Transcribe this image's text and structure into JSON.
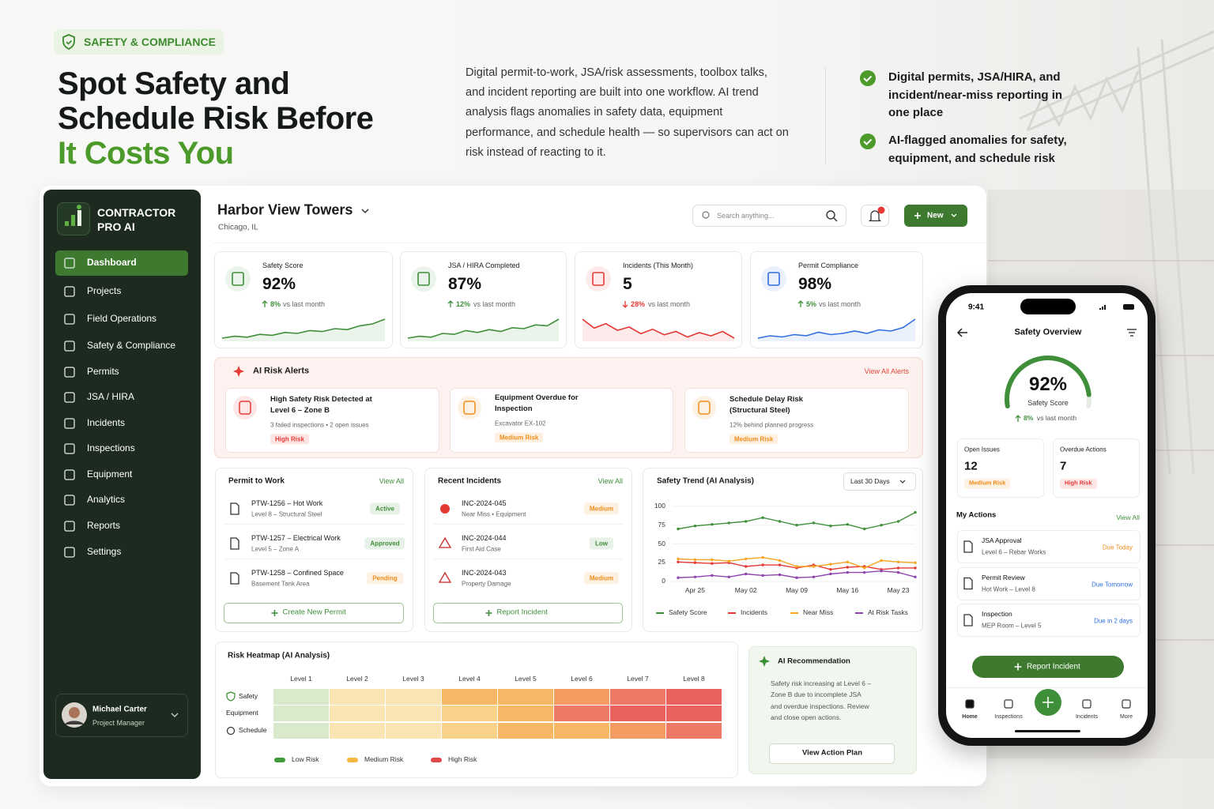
{
  "badge": "SAFETY & COMPLIANCE",
  "hero": {
    "title_lines": [
      "Spot Safety and",
      "Schedule Risk Before"
    ],
    "title_accent": "It Costs You",
    "description": "Digital permit-to-work, JSA/risk assessments, toolbox talks, and incident reporting are built into one workflow. AI trend analysis flags anomalies in safety data, equipment performance, and schedule health — so supervisors can act on risk instead of reacting to it.",
    "bullets": [
      "Digital permits, JSA/HIRA, and incident/near-miss reporting in one place",
      "AI-flagged anomalies for safety, equipment, and schedule risk"
    ]
  },
  "sidebar": {
    "brand": [
      "CONTRACTOR",
      "PRO AI"
    ],
    "nav": [
      "Dashboard",
      "Projects",
      "Field Operations",
      "Safety & Compliance",
      "Permits",
      "JSA / HIRA",
      "Incidents",
      "Inspections",
      "Equipment",
      "Analytics",
      "Reports",
      "Settings"
    ],
    "active_index": 0,
    "user": {
      "name": "Michael Carter",
      "role": "Project Manager"
    }
  },
  "header": {
    "project": "Harbor View Towers",
    "location": "Chicago, IL",
    "search_placeholder": "Search anything...",
    "notification_count": 3,
    "new_button": "New"
  },
  "kpis": [
    {
      "label": "Safety Score",
      "value": "92%",
      "change": "8%",
      "change_note": "vs last month",
      "direction": "up",
      "color": "#3f8f3a",
      "change_color": "#3f8f3a",
      "trend": [
        20,
        22,
        21,
        24,
        23,
        26,
        25,
        28,
        27,
        30,
        29,
        33,
        35,
        40
      ]
    },
    {
      "label": "JSA / HIRA Completed",
      "value": "87%",
      "change": "12%",
      "change_note": "vs last month",
      "direction": "up",
      "color": "#3f8f3a",
      "change_color": "#3f8f3a",
      "trend": [
        18,
        20,
        19,
        23,
        22,
        26,
        24,
        27,
        25,
        29,
        28,
        32,
        31,
        38
      ]
    },
    {
      "label": "Incidents (This Month)",
      "value": "5",
      "change": "28%",
      "change_note": "vs last month",
      "direction": "down",
      "color": "#e53935",
      "change_color": "#e53935",
      "trend": [
        38,
        30,
        34,
        28,
        31,
        25,
        29,
        24,
        27,
        22,
        26,
        23,
        27,
        21
      ]
    },
    {
      "label": "Permit Compliance",
      "value": "98%",
      "change": "5%",
      "change_note": "vs last month",
      "direction": "up",
      "color": "#2f6fdf",
      "change_color": "#3f8f3a",
      "trend": [
        20,
        22,
        21,
        23,
        22,
        25,
        23,
        24,
        26,
        24,
        27,
        26,
        29,
        36
      ]
    }
  ],
  "alerts": {
    "title": "AI Risk Alerts",
    "link": "View All Alerts",
    "items": [
      {
        "title": "High Safety Risk Detected at Level 6 – Zone B",
        "detail": "3 failed inspections • 2 open issues",
        "badge": "High Risk",
        "color": "#e53935"
      },
      {
        "title": "Equipment Overdue for Inspection",
        "detail": "Excavator EX-102",
        "badge": "Medium Risk",
        "color": "#f08c1a"
      },
      {
        "title": "Schedule Delay Risk (Structural Steel)",
        "detail": "12% behind planned progress",
        "badge": "Medium Risk",
        "color": "#f08c1a"
      }
    ]
  },
  "permits": {
    "title": "Permit to Work",
    "link": "View All",
    "button": "Create New Permit",
    "items": [
      {
        "title": "PTW-1256 – Hot Work",
        "sub": "Level 8 – Structural Steel",
        "status": "Active",
        "color": "#3f8f3a"
      },
      {
        "title": "PTW-1257 – Electrical Work",
        "sub": "Level 5 – Zone A",
        "status": "Approved",
        "color": "#3f8f3a"
      },
      {
        "title": "PTW-1258 – Confined Space",
        "sub": "Basement Tank Area",
        "status": "Pending",
        "color": "#f08c1a"
      }
    ]
  },
  "incidents": {
    "title": "Recent Incidents",
    "link": "View All",
    "button": "Report Incident",
    "items": [
      {
        "title": "INC-2024-045",
        "sub": "Near Miss • Equipment",
        "status": "Medium",
        "color": "#f08c1a"
      },
      {
        "title": "INC-2024-044",
        "sub": "First Aid Case",
        "status": "Low",
        "color": "#3f8f3a"
      },
      {
        "title": "INC-2024-043",
        "sub": "Property Damage",
        "status": "Medium",
        "color": "#f08c1a"
      }
    ]
  },
  "chart_data": {
    "type": "line",
    "title": "Safety Trend (AI Analysis)",
    "range_select": "Last 30 Days",
    "categories": [
      null,
      "Apr 25",
      null,
      null,
      "May 02",
      null,
      null,
      "May 09",
      null,
      null,
      "May 16",
      null,
      null,
      "May 23",
      null
    ],
    "series": [
      {
        "name": "Safety Score",
        "color": "#3f8f3a",
        "values": [
          70,
          74,
          76,
          78,
          80,
          85,
          80,
          75,
          78,
          74,
          76,
          70,
          75,
          80,
          92
        ]
      },
      {
        "name": "Incidents",
        "color": "#e53935",
        "values": [
          26,
          25,
          24,
          25,
          20,
          22,
          22,
          18,
          22,
          16,
          19,
          20,
          16,
          18,
          18
        ]
      },
      {
        "name": "Near Miss",
        "color": "#f5a623",
        "values": [
          30,
          29,
          29,
          27,
          30,
          32,
          28,
          20,
          20,
          23,
          26,
          18,
          28,
          26,
          25
        ]
      },
      {
        "name": "At Risk Tasks",
        "color": "#8e44ad",
        "values": [
          5,
          6,
          8,
          6,
          10,
          8,
          9,
          5,
          6,
          10,
          12,
          12,
          14,
          12,
          6
        ]
      }
    ],
    "ylim": [
      0,
      100
    ],
    "yticks": [
      0,
      25,
      50,
      75,
      100
    ],
    "grid": true
  },
  "heatmap": {
    "title": "Risk Heatmap (AI Analysis)",
    "columns": [
      "Level 1",
      "Level 2",
      "Level 3",
      "Level 4",
      "Level 5",
      "Level 6",
      "Level 7",
      "Level 8"
    ],
    "rows": [
      {
        "label": "Safety",
        "cells": [
          0,
          1,
          1,
          3,
          3,
          4,
          5,
          6
        ]
      },
      {
        "label": "Equipment",
        "cells": [
          0,
          1,
          1,
          2,
          3,
          5,
          6,
          6
        ]
      },
      {
        "label": "Schedule",
        "cells": [
          0,
          1,
          1,
          2,
          3,
          3,
          4,
          5
        ]
      }
    ],
    "colors": [
      "#d9e9cc",
      "#fbe4b4",
      "#f9d28a",
      "#f6b864",
      "#f29c62",
      "#ec7a66",
      "#e8625e"
    ],
    "legend": [
      {
        "label": "Low Risk",
        "color": "#3f9a3a"
      },
      {
        "label": "Medium Risk",
        "color": "#f5b942"
      },
      {
        "label": "High Risk",
        "color": "#e04848"
      }
    ]
  },
  "recommendation": {
    "title": "AI Recommendation",
    "text": "Safety risk increasing at Level 6 – Zone B due to incomplete JSA and overdue inspections. Review and close open actions.",
    "button": "View Action Plan"
  },
  "phone": {
    "time": "9:41",
    "title": "Safety Overview",
    "gauge": {
      "value": 92,
      "lim": [
        0,
        100
      ],
      "label": "92%",
      "caption": "Safety Score",
      "change": "8%",
      "change_note": "vs last month"
    },
    "stats": [
      {
        "label": "Open Issues",
        "value": 12,
        "badge": "Medium Risk",
        "color": "#f08c1a"
      },
      {
        "label": "Overdue Actions",
        "value": 7,
        "badge": "High Risk",
        "color": "#e53935"
      }
    ],
    "actions_title": "My Actions",
    "actions_link": "View All",
    "actions": [
      {
        "title": "JSA Approval",
        "sub": "Level 6 – Rebar Works",
        "due": "Due Today",
        "color": "#f08c1a"
      },
      {
        "title": "Permit Review",
        "sub": "Hot Work – Level 8",
        "due": "Due Tomorrow",
        "color": "#2f6fdf"
      },
      {
        "title": "Inspection",
        "sub": "MEP Room – Level 5",
        "due": "Due in 2 days",
        "color": "#2f6fdf"
      }
    ],
    "button": "Report Incident",
    "tabs": [
      "Home",
      "Inspections",
      "Incidents",
      "More"
    ]
  }
}
